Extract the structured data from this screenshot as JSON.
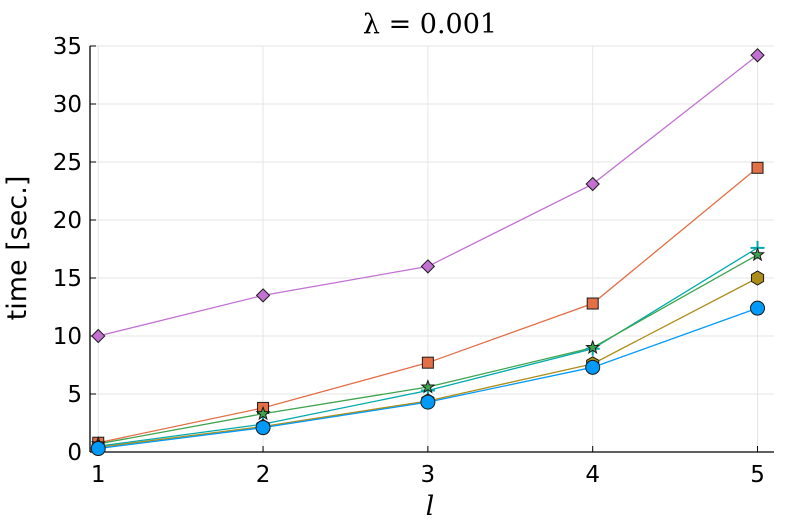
{
  "chart_data": {
    "type": "line",
    "title": "λ = 0.001",
    "xlabel": "l",
    "ylabel": "time [sec.]",
    "x": [
      1,
      2,
      3,
      4,
      5
    ],
    "xlim": [
      0.95,
      5.1
    ],
    "ylim": [
      0,
      35
    ],
    "xticks": [
      "1",
      "2",
      "3",
      "4",
      "5"
    ],
    "yticks": [
      "0",
      "5",
      "10",
      "15",
      "20",
      "25",
      "30",
      "35"
    ],
    "grid": true,
    "legend": "none",
    "series": [
      {
        "values": [
          10.0,
          13.5,
          16.0,
          23.1,
          34.2
        ],
        "color": "#c271d2",
        "marker": "diamond"
      },
      {
        "values": [
          0.8,
          3.8,
          7.7,
          12.8,
          24.5
        ],
        "color": "#e26f46",
        "marker": "square"
      },
      {
        "values": [
          0.5,
          2.4,
          5.3,
          8.9,
          17.6
        ],
        "color": "#00a9ad",
        "marker": "cross"
      },
      {
        "values": [
          0.7,
          3.3,
          5.6,
          9.0,
          17.0
        ],
        "color": "#3da44d",
        "marker": "star"
      },
      {
        "values": [
          0.4,
          2.2,
          4.4,
          7.6,
          15.0
        ],
        "color": "#ac8d18",
        "marker": "hexagon"
      },
      {
        "values": [
          0.3,
          2.1,
          4.3,
          7.3,
          12.4
        ],
        "color": "#009af9",
        "marker": "circle"
      }
    ]
  }
}
